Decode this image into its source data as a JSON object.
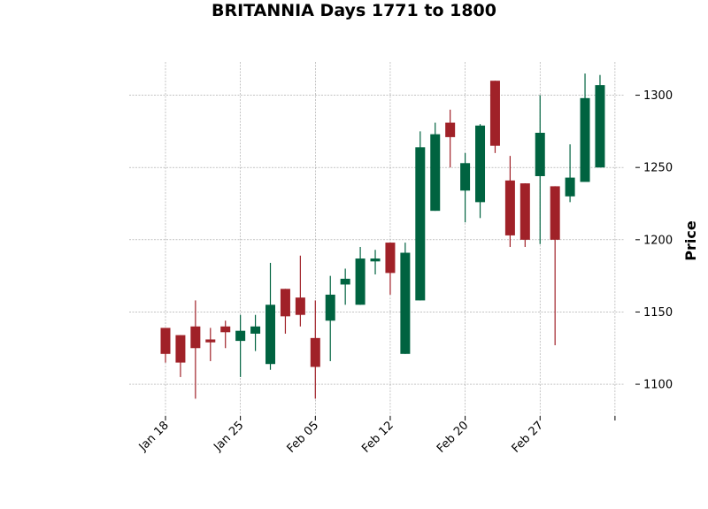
{
  "chart_data": {
    "type": "candlestick",
    "title": "BRITANNIA Days 1771 to 1800",
    "xlabel": "",
    "ylabel": "Price",
    "ylim": [
      1078,
      1323
    ],
    "yticks": [
      1100,
      1150,
      1200,
      1250,
      1300
    ],
    "grid": true,
    "colors": {
      "up": "#006340",
      "down": "#a02128"
    },
    "xtick_labels": [
      {
        "label": "Jan 18",
        "index": 0
      },
      {
        "label": "Jan 25",
        "index": 5
      },
      {
        "label": "Feb 05",
        "index": 10
      },
      {
        "label": "Feb 12",
        "index": 15
      },
      {
        "label": "Feb 20",
        "index": 20
      },
      {
        "label": "Feb 27",
        "index": 25
      },
      {
        "label": "",
        "index": 30
      }
    ],
    "candles": [
      {
        "open": 1139,
        "high": 1139,
        "low": 1115,
        "close": 1121
      },
      {
        "open": 1134,
        "high": 1134,
        "low": 1105,
        "close": 1115
      },
      {
        "open": 1140,
        "high": 1158,
        "low": 1090,
        "close": 1125
      },
      {
        "open": 1131,
        "high": 1139,
        "low": 1116,
        "close": 1129
      },
      {
        "open": 1140,
        "high": 1144,
        "low": 1125,
        "close": 1136
      },
      {
        "open": 1130,
        "high": 1148,
        "low": 1105,
        "close": 1137
      },
      {
        "open": 1135,
        "high": 1148,
        "low": 1123,
        "close": 1140
      },
      {
        "open": 1114,
        "high": 1184,
        "low": 1110,
        "close": 1155
      },
      {
        "open": 1166,
        "high": 1166,
        "low": 1135,
        "close": 1147
      },
      {
        "open": 1160,
        "high": 1189,
        "low": 1140,
        "close": 1148
      },
      {
        "open": 1132,
        "high": 1158,
        "low": 1090,
        "close": 1112
      },
      {
        "open": 1144,
        "high": 1175,
        "low": 1116,
        "close": 1162
      },
      {
        "open": 1169,
        "high": 1180,
        "low": 1155,
        "close": 1173
      },
      {
        "open": 1155,
        "high": 1195,
        "low": 1155,
        "close": 1187
      },
      {
        "open": 1185,
        "high": 1193,
        "low": 1176,
        "close": 1187
      },
      {
        "open": 1198,
        "high": 1198,
        "low": 1162,
        "close": 1177
      },
      {
        "open": 1121,
        "high": 1198,
        "low": 1121,
        "close": 1191
      },
      {
        "open": 1158,
        "high": 1275,
        "low": 1158,
        "close": 1264
      },
      {
        "open": 1220,
        "high": 1281,
        "low": 1220,
        "close": 1273
      },
      {
        "open": 1281,
        "high": 1290,
        "low": 1250,
        "close": 1271
      },
      {
        "open": 1234,
        "high": 1260,
        "low": 1212,
        "close": 1253
      },
      {
        "open": 1226,
        "high": 1280,
        "low": 1215,
        "close": 1279
      },
      {
        "open": 1310,
        "high": 1310,
        "low": 1260,
        "close": 1265
      },
      {
        "open": 1241,
        "high": 1258,
        "low": 1195,
        "close": 1203
      },
      {
        "open": 1239,
        "high": 1239,
        "low": 1195,
        "close": 1200
      },
      {
        "open": 1244,
        "high": 1300,
        "low": 1197,
        "close": 1274
      },
      {
        "open": 1237,
        "high": 1237,
        "low": 1127,
        "close": 1200
      },
      {
        "open": 1230,
        "high": 1266,
        "low": 1226,
        "close": 1243
      },
      {
        "open": 1240,
        "high": 1315,
        "low": 1240,
        "close": 1298
      },
      {
        "open": 1250,
        "high": 1314,
        "low": 1250,
        "close": 1307
      }
    ]
  }
}
